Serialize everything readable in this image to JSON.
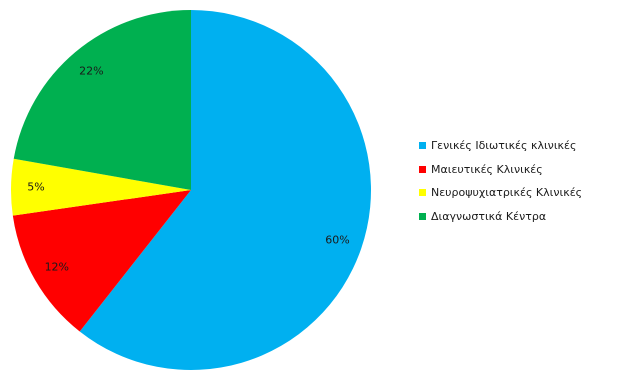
{
  "chart_data": {
    "type": "pie",
    "categories": [
      "Γενικές Ιδιωτικές κλινικές",
      "Μαιευτικές Κλινικές",
      "Νευροψυχιατρικές Κλινικές",
      "Διαγνωστικά Κέντρα"
    ],
    "values": [
      60,
      12,
      5,
      22
    ],
    "data_labels": [
      "60%",
      "12%",
      "5%",
      "22%"
    ],
    "colors": [
      "#00b0f0",
      "#ff0000",
      "#ffff00",
      "#00b050"
    ],
    "legend": {
      "position": "right",
      "entries": [
        "Γενικές Ιδιωτικές κλινικές",
        "Μαιευτικές Κλινικές",
        "Νευροψυχιατρικές Κλινικές",
        "Διαγνωστικά Κέντρα"
      ]
    },
    "start_angle": "12 o'clock",
    "direction": "clockwise"
  }
}
